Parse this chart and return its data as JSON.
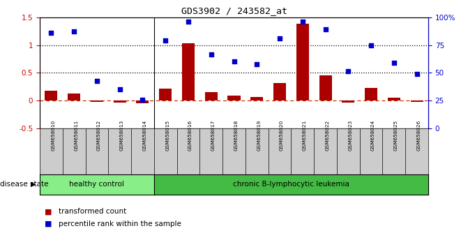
{
  "title": "GDS3902 / 243582_at",
  "samples": [
    "GSM658010",
    "GSM658011",
    "GSM658012",
    "GSM658013",
    "GSM658014",
    "GSM658015",
    "GSM658016",
    "GSM658017",
    "GSM658018",
    "GSM658019",
    "GSM658020",
    "GSM658021",
    "GSM658022",
    "GSM658023",
    "GSM658024",
    "GSM658025",
    "GSM658026"
  ],
  "bar_values": [
    0.18,
    0.13,
    -0.02,
    -0.03,
    -0.05,
    0.22,
    1.03,
    0.15,
    0.09,
    0.06,
    0.32,
    1.38,
    0.45,
    -0.03,
    0.23,
    0.05,
    -0.02
  ],
  "scatter_values": [
    1.22,
    1.25,
    0.35,
    0.2,
    0.02,
    1.08,
    1.42,
    0.83,
    0.71,
    0.65,
    1.12,
    1.42,
    1.28,
    0.53,
    1.0,
    0.68,
    0.48
  ],
  "healthy_control_count": 5,
  "ylim": [
    -0.5,
    1.5
  ],
  "yticks_left": [
    -0.5,
    0.0,
    0.5,
    1.0,
    1.5
  ],
  "ytick_labels_left": [
    "-0.5",
    "0",
    "0.5",
    "1",
    "1.5"
  ],
  "yticks_right_vals": [
    -0.5,
    0.0,
    0.5,
    1.0,
    1.5
  ],
  "ytick_labels_right": [
    "0",
    "25",
    "50",
    "75",
    "100%"
  ],
  "dotted_lines": [
    0.5,
    1.0
  ],
  "bar_color": "#aa0000",
  "scatter_color": "#0000cc",
  "dashed_line_color": "#cc3300",
  "healthy_color": "#88ee88",
  "leukemia_color": "#44bb44",
  "healthy_label": "healthy control",
  "leukemia_label": "chronic B-lymphocytic leukemia",
  "legend1": "transformed count",
  "legend2": "percentile rank within the sample",
  "disease_state_label": "disease state",
  "tick_bg_color": "#cccccc",
  "background_color": "#ffffff",
  "axis_color_left": "#cc0000",
  "axis_color_right": "#0000cc"
}
